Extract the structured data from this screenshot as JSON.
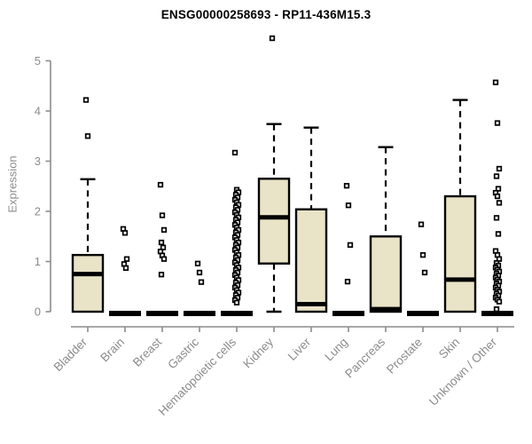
{
  "title": "ENSG00000258693 - RP11-436M15.3",
  "chart_data": {
    "type": "box",
    "title": "ENSG00000258693 - RP11-436M15.3",
    "xlabel": "",
    "ylabel": "Expression",
    "ylim": [
      0,
      5.5
    ],
    "yticks": [
      0,
      1,
      2,
      3,
      4,
      5
    ],
    "grid": false,
    "legend": false,
    "categories": [
      "Bladder",
      "Brain",
      "Breast",
      "Gastric",
      "Hematopoietic cells",
      "Kidney",
      "Liver",
      "Lung",
      "Pancreas",
      "Prostate",
      "Skin",
      "Unknown / Other"
    ],
    "boxes": [
      {
        "category": "Bladder",
        "q1": 0,
        "median": 0.75,
        "q3": 1.13,
        "whisker_low": 0,
        "whisker_high": 2.64,
        "outliers": [
          4.22,
          3.5
        ]
      },
      {
        "category": "Brain",
        "q1": 0,
        "median": 0,
        "q3": 0,
        "whisker_low": 0,
        "whisker_high": 0,
        "outliers": [
          1.65,
          1.57,
          1.05,
          0.95,
          0.87
        ]
      },
      {
        "category": "Breast",
        "q1": 0,
        "median": 0,
        "q3": 0,
        "whisker_low": 0,
        "whisker_high": 0,
        "outliers": [
          2.53,
          1.92,
          1.63,
          1.38,
          1.28,
          1.2,
          1.12,
          1.05,
          0.74
        ]
      },
      {
        "category": "Gastric",
        "q1": 0,
        "median": 0,
        "q3": 0,
        "whisker_low": 0,
        "whisker_high": 0,
        "outliers": [
          0.96,
          0.78,
          0.59
        ]
      },
      {
        "category": "Hematopoietic cells",
        "q1": 0,
        "median": 0,
        "q3": 0,
        "whisker_low": 0,
        "whisker_high": 0,
        "outliers": [
          3.17,
          2.43,
          2.38,
          2.33,
          2.28,
          2.23,
          2.18,
          2.13,
          2.08,
          2.03,
          1.98,
          1.93,
          1.88,
          1.83,
          1.78,
          1.73,
          1.68,
          1.63,
          1.58,
          1.53,
          1.48,
          1.43,
          1.38,
          1.33,
          1.28,
          1.23,
          1.18,
          1.13,
          1.08,
          1.03,
          0.98,
          0.93,
          0.88,
          0.83,
          0.78,
          0.73,
          0.68,
          0.63,
          0.58,
          0.53,
          0.48,
          0.43,
          0.38,
          0.33,
          0.28,
          0.23,
          0.18
        ]
      },
      {
        "category": "Kidney",
        "q1": 0.96,
        "median": 1.88,
        "q3": 2.65,
        "whisker_low": 0,
        "whisker_high": 3.74,
        "outliers": [
          5.45
        ]
      },
      {
        "category": "Liver",
        "q1": 0,
        "median": 0.15,
        "q3": 2.04,
        "whisker_low": 0,
        "whisker_high": 3.67,
        "outliers": []
      },
      {
        "category": "Lung",
        "q1": 0,
        "median": 0,
        "q3": 0,
        "whisker_low": 0,
        "whisker_high": 0,
        "outliers": [
          2.51,
          2.12,
          1.33,
          0.6
        ]
      },
      {
        "category": "Pancreas",
        "q1": 0,
        "median": 0.05,
        "q3": 1.5,
        "whisker_low": 0,
        "whisker_high": 3.28,
        "outliers": []
      },
      {
        "category": "Prostate",
        "q1": 0,
        "median": 0,
        "q3": 0,
        "whisker_low": 0,
        "whisker_high": 0,
        "outliers": [
          1.74,
          1.13,
          0.78
        ]
      },
      {
        "category": "Skin",
        "q1": 0,
        "median": 0.64,
        "q3": 2.3,
        "whisker_low": 0,
        "whisker_high": 4.22,
        "outliers": []
      },
      {
        "category": "Unknown / Other",
        "q1": 0,
        "median": 0,
        "q3": 0,
        "whisker_low": 0,
        "whisker_high": 0,
        "outliers": [
          4.57,
          3.76,
          2.85,
          2.7,
          2.45,
          2.37,
          2.3,
          2.17,
          1.87,
          1.55,
          1.21,
          1.13,
          1.05,
          0.97,
          0.92,
          0.88,
          0.84,
          0.8,
          0.76,
          0.72,
          0.68,
          0.64,
          0.6,
          0.56,
          0.52,
          0.48,
          0.44,
          0.4,
          0.36,
          0.32,
          0.28,
          0.24,
          0.2,
          0.05
        ]
      }
    ],
    "colors": {
      "background": "#FFFFFF",
      "box_fill": "#E9E3C7",
      "box_border": "#000000",
      "median": "#000000",
      "whisker": "#000000",
      "outlier_stroke": "#000000",
      "outlier_fill": "#FFFFFF",
      "axis": "#8C8C8C",
      "tick_label": "#8C8C8C",
      "title": "#000000"
    }
  }
}
